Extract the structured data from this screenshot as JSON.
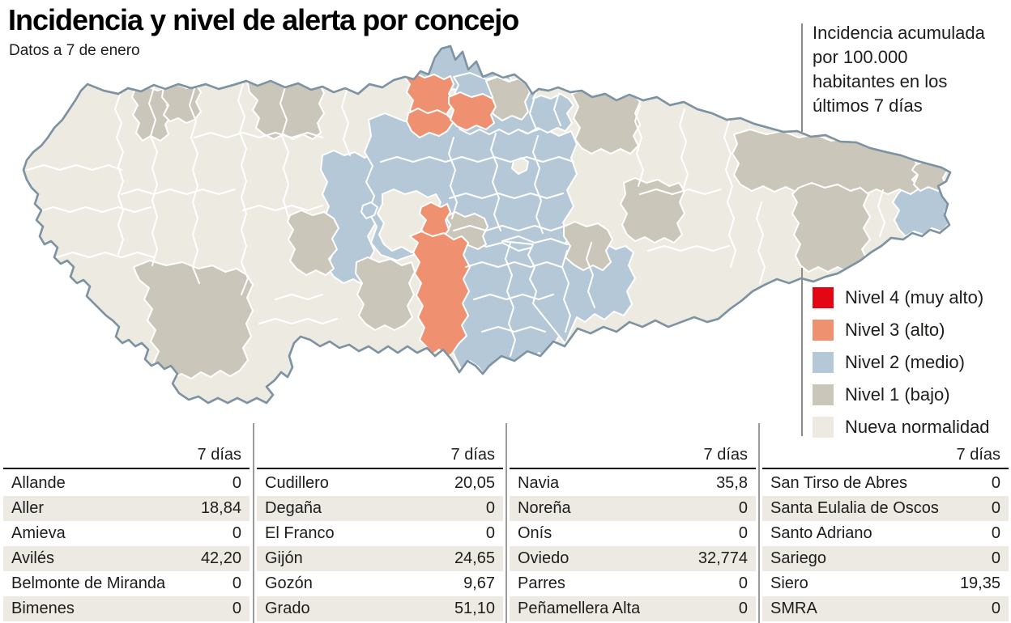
{
  "header": {
    "title": "Incidencia y nivel de alerta por concejo",
    "subtitle": "Datos a 7 de enero"
  },
  "note": {
    "lines": [
      "Incidencia acumulada",
      "por 100.000",
      "habitantes en los",
      "últimos 7 días"
    ]
  },
  "legend": {
    "items": [
      {
        "label": "Nivel 4 (muy alto)",
        "level": "n4"
      },
      {
        "label": "Nivel 3 (alto)",
        "level": "n3"
      },
      {
        "label": "Nivel 2 (medio)",
        "level": "n2"
      },
      {
        "label": "Nivel 1 (bajo)",
        "level": "n1"
      },
      {
        "label": "Nueva normalidad",
        "level": "new"
      }
    ],
    "colors": {
      "n4": "#e30613",
      "n3": "#ef9170",
      "n2": "#b5c8d7",
      "n1": "#cac6b9",
      "new": "#edeae2"
    }
  },
  "map": {
    "outline_color": "#7d93a3",
    "border_color": "#ffffff"
  },
  "table": {
    "value_header": "7 días",
    "columns": [
      {
        "rows": [
          [
            "Allande",
            "0"
          ],
          [
            "Aller",
            "18,84"
          ],
          [
            "Amieva",
            "0"
          ],
          [
            "Avilés",
            "42,20"
          ],
          [
            "Belmonte de Miranda",
            "0"
          ],
          [
            "Bimenes",
            "0"
          ]
        ]
      },
      {
        "rows": [
          [
            "Cudillero",
            "20,05"
          ],
          [
            "Degaña",
            "0"
          ],
          [
            "El Franco",
            "0"
          ],
          [
            "Gijón",
            "24,65"
          ],
          [
            "Gozón",
            "9,67"
          ],
          [
            "Grado",
            "51,10"
          ]
        ]
      },
      {
        "rows": [
          [
            "Navia",
            "35,8"
          ],
          [
            "Noreña",
            "0"
          ],
          [
            "Onís",
            "0"
          ],
          [
            "Oviedo",
            "32,774"
          ],
          [
            "Parres",
            "0"
          ],
          [
            "Peñamellera Alta",
            "0"
          ]
        ]
      },
      {
        "rows": [
          [
            "San Tirso de Abres",
            "0"
          ],
          [
            "Santa Eulalia de Oscos",
            "0"
          ],
          [
            "Santo Adriano",
            "0"
          ],
          [
            "Sariego",
            "0"
          ],
          [
            "Siero",
            "19,35"
          ],
          [
            "SMRA",
            "0"
          ]
        ]
      }
    ]
  }
}
